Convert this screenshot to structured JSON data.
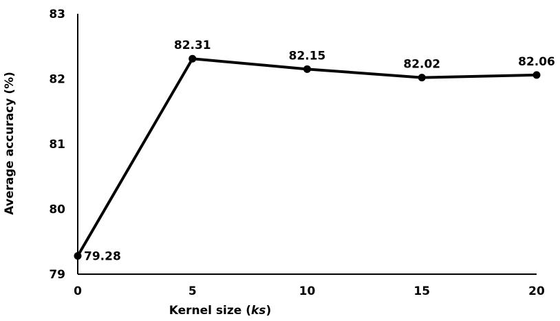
{
  "chart_data": {
    "type": "line",
    "xlabel_prefix": "Kernel size (",
    "xlabel_var": "ks",
    "xlabel_suffix": ")",
    "ylabel": "Average accuracy (%)",
    "x": [
      0,
      5,
      10,
      15,
      20
    ],
    "series": [
      {
        "values": [
          79.28,
          82.31,
          82.15,
          82.02,
          82.06
        ]
      }
    ],
    "data_labels": [
      "79.28",
      "82.31",
      "82.15",
      "82.02",
      "82.06"
    ],
    "xlim": [
      0,
      20
    ],
    "ylim": [
      79,
      83
    ],
    "xticks": [
      "0",
      "5",
      "10",
      "15",
      "20"
    ],
    "yticks": [
      "79",
      "80",
      "81",
      "82",
      "83"
    ],
    "grid": false,
    "legend": "none",
    "line_color": "#000000"
  }
}
